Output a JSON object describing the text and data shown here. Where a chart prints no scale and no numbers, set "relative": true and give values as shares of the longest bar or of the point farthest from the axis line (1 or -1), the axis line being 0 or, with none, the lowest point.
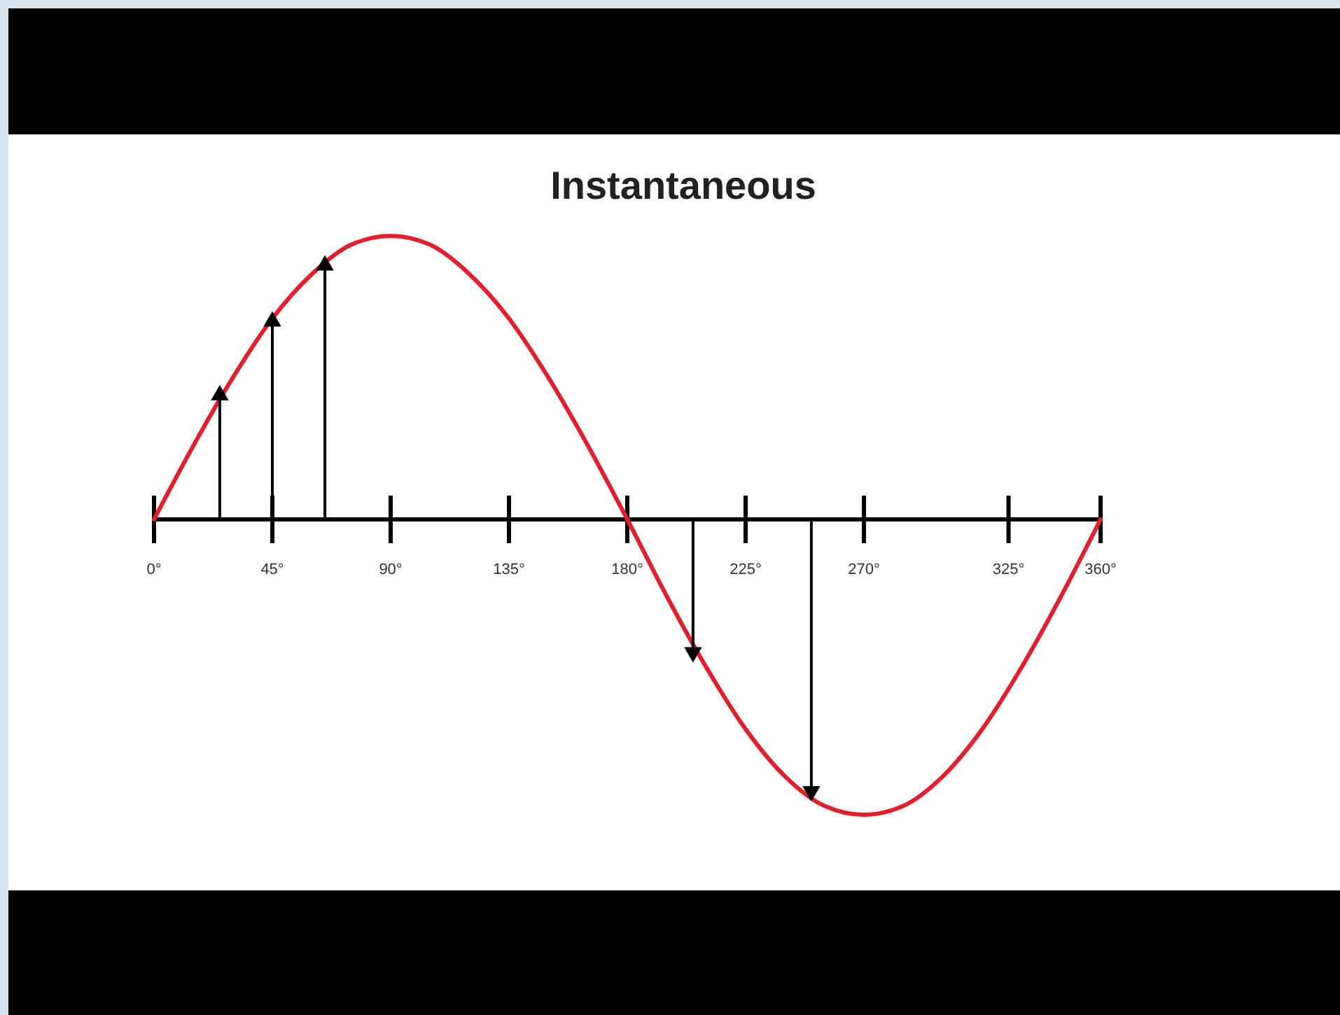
{
  "chart_data": {
    "type": "line",
    "title": "Instantaneous",
    "relative": true,
    "xlim": [
      0,
      360
    ],
    "xticks": [
      {
        "value": 0,
        "label": "0°"
      },
      {
        "value": 45,
        "label": "45°"
      },
      {
        "value": 90,
        "label": "90°"
      },
      {
        "value": 135,
        "label": "135°"
      },
      {
        "value": 180,
        "label": "180°"
      },
      {
        "value": 225,
        "label": "225°"
      },
      {
        "value": 270,
        "label": "270°"
      },
      {
        "value": 325,
        "label": "325°"
      },
      {
        "value": 360,
        "label": "360°"
      }
    ],
    "series": [
      {
        "color": "#e0202c",
        "x": [
          0,
          15,
          30,
          45,
          60,
          75,
          90,
          105,
          120,
          135,
          150,
          165,
          180,
          195,
          210,
          225,
          240,
          255,
          270,
          285,
          300,
          315,
          330,
          345,
          360
        ],
        "values": [
          0,
          0.25,
          0.48,
          0.68,
          0.83,
          0.93,
          0.96,
          0.93,
          0.83,
          0.68,
          0.48,
          0.25,
          0,
          -0.26,
          -0.5,
          -0.71,
          -0.87,
          -0.97,
          -1,
          -0.97,
          -0.87,
          -0.71,
          -0.5,
          -0.26,
          0
        ]
      },
      {
        "type": "lollipop",
        "color": "#000000",
        "marker": "triangle",
        "x": [
          25,
          45,
          65,
          205,
          250
        ],
        "values": [
          0.42,
          0.67,
          0.86,
          -0.45,
          -0.92
        ]
      }
    ]
  }
}
